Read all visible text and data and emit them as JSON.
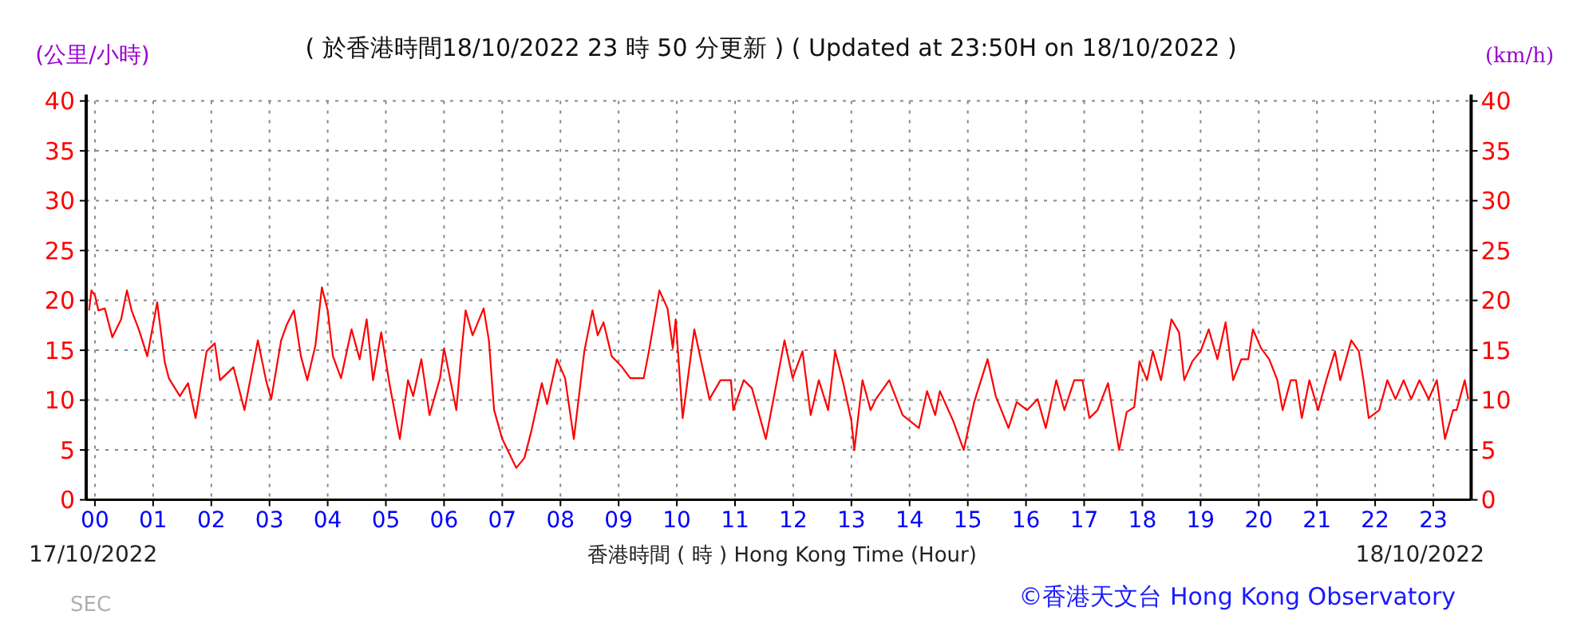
{
  "chart_data": {
    "type": "line",
    "title": "( 於香港時間18/10/2022 23 時 50 分更新 ) ( Updated at 23:50H on 18/10/2022 )",
    "xlabel": "香港時間 ( 時 ) Hong Kong Time (Hour)",
    "ylabel": "(公里/小時)",
    "y2label": "(km/h)",
    "annotations": [
      "17/10/2022",
      "18/10/2022",
      "SEC",
      "©香港天文台 Hong Kong Observatory"
    ],
    "xlim": [
      -0.15,
      23.65
    ],
    "ylim": [
      0,
      40
    ],
    "y2lim": [
      0,
      40
    ],
    "xticks": [
      {
        "value": 0,
        "label": "00"
      },
      {
        "value": 1,
        "label": "01"
      },
      {
        "value": 2,
        "label": "02"
      },
      {
        "value": 3,
        "label": "03"
      },
      {
        "value": 4,
        "label": "04"
      },
      {
        "value": 5,
        "label": "05"
      },
      {
        "value": 6,
        "label": "06"
      },
      {
        "value": 7,
        "label": "07"
      },
      {
        "value": 8,
        "label": "08"
      },
      {
        "value": 9,
        "label": "09"
      },
      {
        "value": 10,
        "label": "10"
      },
      {
        "value": 11,
        "label": "11"
      },
      {
        "value": 12,
        "label": "12"
      },
      {
        "value": 13,
        "label": "13"
      },
      {
        "value": 14,
        "label": "14"
      },
      {
        "value": 15,
        "label": "15"
      },
      {
        "value": 16,
        "label": "16"
      },
      {
        "value": 17,
        "label": "17"
      },
      {
        "value": 18,
        "label": "18"
      },
      {
        "value": 19,
        "label": "19"
      },
      {
        "value": 20,
        "label": "20"
      },
      {
        "value": 21,
        "label": "21"
      },
      {
        "value": 22,
        "label": "22"
      },
      {
        "value": 23,
        "label": "23"
      }
    ],
    "yticks": [
      0,
      5,
      10,
      15,
      20,
      25,
      30,
      35,
      40
    ],
    "y2ticks": [
      0,
      5,
      10,
      15,
      20,
      25,
      30,
      35,
      40
    ],
    "grid": true,
    "marker": "none",
    "line_style": "solid",
    "series": [
      {
        "color": "#ff0000",
        "x": [
          -0.1,
          -0.06,
          0,
          0.06,
          0.17,
          0.3,
          0.45,
          0.55,
          0.63,
          0.76,
          0.9,
          1.07,
          1.2,
          1.27,
          1.46,
          1.6,
          1.73,
          1.92,
          2.06,
          2.15,
          2.38,
          2.57,
          2.8,
          2.94,
          3.03,
          3.2,
          3.3,
          3.42,
          3.54,
          3.65,
          3.79,
          3.9,
          4.0,
          4.09,
          4.23,
          4.41,
          4.55,
          4.67,
          4.78,
          4.92,
          5.06,
          5.24,
          5.38,
          5.47,
          5.61,
          5.75,
          5.93,
          6.0,
          6.21,
          6.3,
          6.37,
          6.49,
          6.68,
          6.77,
          6.86,
          7.0,
          7.24,
          7.38,
          7.5,
          7.68,
          7.77,
          7.94,
          8.08,
          8.23,
          8.41,
          8.55,
          8.64,
          8.74,
          8.88,
          9.06,
          9.2,
          9.43,
          9.52,
          9.7,
          9.84,
          9.93,
          9.98,
          10.1,
          10.3,
          10.44,
          10.56,
          10.75,
          10.93,
          10.97,
          11.15,
          11.29,
          11.53,
          11.67,
          11.85,
          11.99,
          12.16,
          12.3,
          12.44,
          12.6,
          12.72,
          12.86,
          13.0,
          13.05,
          13.19,
          13.33,
          13.42,
          13.65,
          13.88,
          14.16,
          14.3,
          14.44,
          14.52,
          14.75,
          14.93,
          15.11,
          15.34,
          15.48,
          15.7,
          15.84,
          16.02,
          16.2,
          16.34,
          16.52,
          16.66,
          16.83,
          16.97,
          17.09,
          17.23,
          17.41,
          17.6,
          17.73,
          17.86,
          17.95,
          18.08,
          18.18,
          18.32,
          18.5,
          18.63,
          18.72,
          18.86,
          19.0,
          19.14,
          19.29,
          19.43,
          19.56,
          19.7,
          19.82,
          19.9,
          20.04,
          20.18,
          20.32,
          20.41,
          20.55,
          20.64,
          20.74,
          20.87,
          21.02,
          21.16,
          21.31,
          21.4,
          21.59,
          21.72,
          21.8,
          21.89,
          22.07,
          22.21,
          22.35,
          22.49,
          22.62,
          22.76,
          22.92,
          23.06,
          23.2,
          23.34,
          23.4,
          23.54,
          23.6
        ],
        "values": [
          19,
          21,
          20.5,
          19,
          19.2,
          16.3,
          18.1,
          21,
          19,
          17,
          14.4,
          19.8,
          13.8,
          12.2,
          10.4,
          11.7,
          8.2,
          14.9,
          15.7,
          12,
          13.3,
          9,
          16,
          12,
          10.1,
          16,
          17.6,
          19,
          14.4,
          12,
          15.5,
          21.3,
          19,
          14.4,
          12.2,
          17.1,
          14.1,
          18.1,
          12,
          16.8,
          11.7,
          6.1,
          12,
          10.4,
          14.1,
          8.5,
          12.2,
          15.2,
          9,
          14.9,
          19,
          16.5,
          19.2,
          16,
          9,
          6.1,
          3.2,
          4.2,
          6.9,
          11.7,
          9.6,
          14.1,
          12.2,
          6.1,
          14.9,
          19,
          16.5,
          17.8,
          14.4,
          13.3,
          12.2,
          12.2,
          14.9,
          21,
          19.2,
          15.2,
          18.1,
          8.2,
          17.1,
          13.3,
          10.1,
          12,
          12,
          9,
          12,
          11.2,
          6.1,
          10.4,
          16,
          12.2,
          14.9,
          8.5,
          12,
          9,
          14.9,
          11.7,
          7.9,
          5,
          12,
          9,
          10.1,
          12,
          8.5,
          7.2,
          10.9,
          8.5,
          10.9,
          7.9,
          5,
          9.8,
          14.1,
          10.4,
          7.2,
          9.8,
          9,
          10.1,
          7.2,
          12,
          9,
          12,
          12,
          8.2,
          9,
          11.7,
          5,
          8.8,
          9.3,
          13.9,
          12,
          14.9,
          12,
          18.1,
          16.8,
          12,
          13.9,
          14.9,
          17.1,
          14.1,
          17.8,
          12,
          14.1,
          14.1,
          17.1,
          15.2,
          14.1,
          12,
          9,
          12,
          12,
          8.2,
          12,
          9,
          12,
          14.9,
          12,
          16,
          14.9,
          12,
          8.2,
          9,
          12,
          10.1,
          12,
          10.1,
          12,
          10.1,
          12,
          6.1,
          9,
          9,
          12,
          10.1
        ]
      }
    ]
  }
}
